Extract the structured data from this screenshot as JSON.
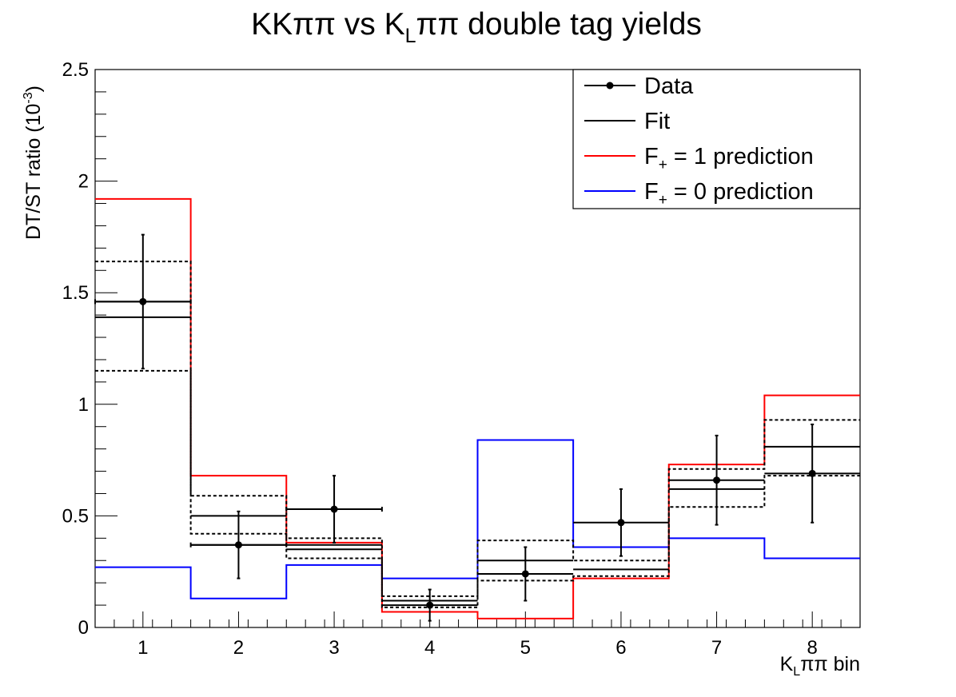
{
  "chart_data": {
    "type": "histogram",
    "title": {
      "pre": "KKππ vs K",
      "sub": "L",
      "post": "ππ double tag yields"
    },
    "xlabel": {
      "pre": "K",
      "sub": "L",
      "post": "ππ bin"
    },
    "ylabel": {
      "pre": "DT/ST ratio (10",
      "sup": "-3",
      "post": ")"
    },
    "xlim": [
      0.5,
      8.5
    ],
    "ylim": [
      0,
      2.5
    ],
    "x_ticks": [
      1,
      2,
      3,
      4,
      5,
      6,
      7,
      8
    ],
    "y_ticks": [
      "0",
      "0.5",
      "1",
      "1.5",
      "2",
      "2.5"
    ],
    "y_tick_values": [
      0,
      0.5,
      1,
      1.5,
      2,
      2.5
    ],
    "bins": [
      1,
      2,
      3,
      4,
      5,
      6,
      7,
      8
    ],
    "data": {
      "y": [
        1.46,
        0.37,
        0.53,
        0.1,
        0.24,
        0.47,
        0.66,
        0.69
      ],
      "err": [
        0.3,
        0.15,
        0.15,
        0.07,
        0.12,
        0.15,
        0.2,
        0.22
      ],
      "xerr": [
        0.5,
        0.5,
        0.5,
        0.0,
        0.0,
        0.0,
        0.0,
        0.0
      ],
      "color": "#000000"
    },
    "fit": {
      "upper": [
        1.46,
        0.5,
        0.37,
        0.12,
        0.3,
        0.47,
        0.66,
        0.81
      ],
      "lower": [
        1.39,
        0.37,
        0.35,
        0.1,
        0.24,
        0.26,
        0.62,
        0.69
      ],
      "band_up": [
        1.64,
        0.59,
        0.4,
        0.14,
        0.39,
        0.3,
        0.71,
        0.93
      ],
      "band_down": [
        1.15,
        0.42,
        0.31,
        0.09,
        0.21,
        0.23,
        0.54,
        0.68
      ],
      "color": "#000000"
    },
    "f1_prediction": {
      "values": [
        1.92,
        0.68,
        0.38,
        0.07,
        0.04,
        0.22,
        0.73,
        1.04
      ],
      "color": "#ff0000"
    },
    "f0_prediction": {
      "values": [
        0.27,
        0.13,
        0.28,
        0.22,
        0.84,
        0.36,
        0.4,
        0.31
      ],
      "color": "#0000ff"
    },
    "legend": {
      "placement": "top-right",
      "entries": [
        {
          "label": "Data"
        },
        {
          "label": "Fit"
        },
        {
          "pre": "F",
          "sub": "+",
          "post": " = 1 prediction"
        },
        {
          "pre": "F",
          "sub": "+",
          "post": " = 0 prediction"
        }
      ]
    }
  }
}
